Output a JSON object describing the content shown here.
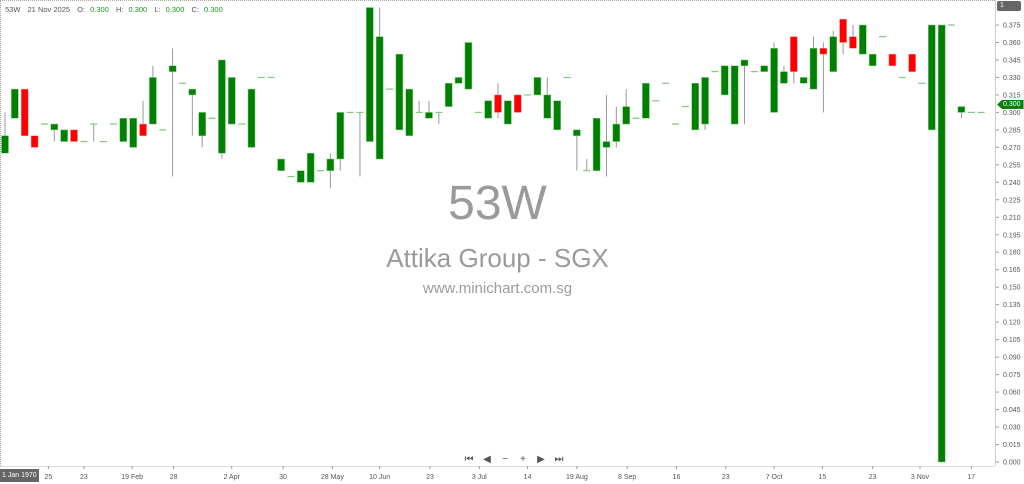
{
  "header": {
    "symbol": "53W",
    "date": "21 Nov 2025",
    "o_label": "O:",
    "o": "0.300",
    "h_label": "H:",
    "h": "0.300",
    "l_label": "L:",
    "l": "0.300",
    "c_label": "C:",
    "c": "0.300"
  },
  "watermark": {
    "ticker": "53W",
    "name": "Attika Group - SGX",
    "url": "www.minichart.com.sg"
  },
  "badges": {
    "scale": "1",
    "last_price": "0.300",
    "crosshair_date": "1 Jan 1970"
  },
  "nav": {
    "first": "⏮",
    "prev": "◀",
    "zoom_out": "−",
    "zoom_in": "+",
    "next": "▶",
    "last": "⏭"
  },
  "colors": {
    "up": "#008000",
    "down": "#ff0000",
    "wick": "#999999",
    "flat": "#7fc97f"
  },
  "chart_data": {
    "type": "candlestick",
    "ylim": [
      0,
      0.39
    ],
    "y_ticks": [
      "0.000",
      "0.015",
      "0.030",
      "0.045",
      "0.060",
      "0.075",
      "0.090",
      "0.105",
      "0.120",
      "0.135",
      "0.150",
      "0.165",
      "0.180",
      "0.195",
      "0.210",
      "0.225",
      "0.240",
      "0.255",
      "0.270",
      "0.285",
      "0.300",
      "0.315",
      "0.330",
      "0.345",
      "0.360",
      "0.375"
    ],
    "x_tick_labels": [
      "25",
      "23",
      "19 Feb",
      "28",
      "2 Apr",
      "30",
      "28 May",
      "10 Jun",
      "23",
      "3 Jul",
      "14",
      "19 Aug",
      "8 Sep",
      "16",
      "23",
      "7 Oct",
      "15",
      "23",
      "3 Nov",
      "17"
    ],
    "ohlc": [
      [
        0.265,
        0.3,
        0.265,
        0.28
      ],
      [
        0.295,
        0.32,
        0.295,
        0.32
      ],
      [
        0.32,
        0.32,
        0.28,
        0.28
      ],
      [
        0.28,
        0.28,
        0.27,
        0.27
      ],
      [
        0.29,
        0.29,
        0.29,
        0.29
      ],
      [
        0.285,
        0.29,
        0.275,
        0.29
      ],
      [
        0.275,
        0.285,
        0.275,
        0.285
      ],
      [
        0.285,
        0.285,
        0.275,
        0.275
      ],
      [
        0.275,
        0.275,
        0.275,
        0.275
      ],
      [
        0.29,
        0.29,
        0.275,
        0.29
      ],
      [
        0.275,
        0.275,
        0.275,
        0.275
      ],
      [
        0.29,
        0.29,
        0.29,
        0.29
      ],
      [
        0.275,
        0.295,
        0.275,
        0.295
      ],
      [
        0.27,
        0.295,
        0.27,
        0.295
      ],
      [
        0.29,
        0.31,
        0.28,
        0.28
      ],
      [
        0.29,
        0.34,
        0.29,
        0.33
      ],
      [
        0.285,
        0.285,
        0.285,
        0.285
      ],
      [
        0.335,
        0.355,
        0.245,
        0.34
      ],
      [
        0.325,
        0.325,
        0.325,
        0.325
      ],
      [
        0.315,
        0.32,
        0.28,
        0.32
      ],
      [
        0.28,
        0.3,
        0.27,
        0.3
      ],
      [
        0.295,
        0.295,
        0.295,
        0.295
      ],
      [
        0.265,
        0.345,
        0.26,
        0.345
      ],
      [
        0.29,
        0.33,
        0.29,
        0.33
      ],
      [
        0.29,
        0.29,
        0.29,
        0.29
      ],
      [
        0.27,
        0.32,
        0.27,
        0.32
      ],
      [
        0.33,
        0.33,
        0.33,
        0.33
      ],
      [
        0.33,
        0.33,
        0.33,
        0.33
      ],
      [
        0.25,
        0.26,
        0.25,
        0.26
      ],
      [
        0.245,
        0.245,
        0.245,
        0.245
      ],
      [
        0.24,
        0.25,
        0.24,
        0.25
      ],
      [
        0.24,
        0.265,
        0.24,
        0.265
      ],
      [
        0.25,
        0.25,
        0.25,
        0.25
      ],
      [
        0.25,
        0.265,
        0.235,
        0.26
      ],
      [
        0.26,
        0.3,
        0.25,
        0.3
      ],
      [
        0.3,
        0.3,
        0.3,
        0.3
      ],
      [
        0.3,
        0.3,
        0.245,
        0.3
      ],
      [
        0.275,
        0.39,
        0.275,
        0.39
      ],
      [
        0.26,
        0.39,
        0.26,
        0.365
      ],
      [
        0.32,
        0.32,
        0.32,
        0.32
      ],
      [
        0.285,
        0.35,
        0.285,
        0.35
      ],
      [
        0.28,
        0.32,
        0.28,
        0.32
      ],
      [
        0.3,
        0.31,
        0.3,
        0.3
      ],
      [
        0.295,
        0.31,
        0.295,
        0.3
      ],
      [
        0.3,
        0.3,
        0.29,
        0.3
      ],
      [
        0.305,
        0.325,
        0.305,
        0.325
      ],
      [
        0.325,
        0.33,
        0.325,
        0.33
      ],
      [
        0.32,
        0.36,
        0.32,
        0.36
      ],
      [
        0.3,
        0.3,
        0.3,
        0.3
      ],
      [
        0.295,
        0.31,
        0.295,
        0.31
      ],
      [
        0.315,
        0.325,
        0.295,
        0.3
      ],
      [
        0.29,
        0.31,
        0.29,
        0.31
      ],
      [
        0.315,
        0.315,
        0.3,
        0.3
      ],
      [
        0.315,
        0.315,
        0.315,
        0.315
      ],
      [
        0.315,
        0.33,
        0.315,
        0.33
      ],
      [
        0.295,
        0.33,
        0.295,
        0.315
      ],
      [
        0.285,
        0.31,
        0.285,
        0.31
      ],
      [
        0.33,
        0.33,
        0.33,
        0.33
      ],
      [
        0.28,
        0.285,
        0.25,
        0.285
      ],
      [
        0.25,
        0.26,
        0.25,
        0.25
      ],
      [
        0.25,
        0.295,
        0.25,
        0.295
      ],
      [
        0.27,
        0.315,
        0.245,
        0.275
      ],
      [
        0.275,
        0.305,
        0.27,
        0.29
      ],
      [
        0.29,
        0.32,
        0.29,
        0.305
      ],
      [
        0.295,
        0.295,
        0.295,
        0.295
      ],
      [
        0.295,
        0.325,
        0.295,
        0.325
      ],
      [
        0.31,
        0.31,
        0.31,
        0.31
      ],
      [
        0.325,
        0.325,
        0.325,
        0.325
      ],
      [
        0.29,
        0.29,
        0.29,
        0.29
      ],
      [
        0.305,
        0.305,
        0.305,
        0.305
      ],
      [
        0.285,
        0.325,
        0.285,
        0.325
      ],
      [
        0.29,
        0.33,
        0.285,
        0.33
      ],
      [
        0.335,
        0.335,
        0.335,
        0.335
      ],
      [
        0.315,
        0.34,
        0.315,
        0.34
      ],
      [
        0.29,
        0.34,
        0.29,
        0.34
      ],
      [
        0.34,
        0.345,
        0.29,
        0.345
      ],
      [
        0.335,
        0.335,
        0.335,
        0.335
      ],
      [
        0.335,
        0.34,
        0.335,
        0.34
      ],
      [
        0.3,
        0.36,
        0.3,
        0.355
      ],
      [
        0.325,
        0.34,
        0.325,
        0.335
      ],
      [
        0.365,
        0.365,
        0.325,
        0.335
      ],
      [
        0.325,
        0.33,
        0.325,
        0.33
      ],
      [
        0.32,
        0.365,
        0.32,
        0.355
      ],
      [
        0.355,
        0.36,
        0.3,
        0.35
      ],
      [
        0.335,
        0.37,
        0.335,
        0.365
      ],
      [
        0.38,
        0.38,
        0.35,
        0.36
      ],
      [
        0.365,
        0.375,
        0.355,
        0.355
      ],
      [
        0.35,
        0.375,
        0.35,
        0.375
      ],
      [
        0.34,
        0.35,
        0.34,
        0.35
      ],
      [
        0.365,
        0.365,
        0.365,
        0.365
      ],
      [
        0.35,
        0.35,
        0.34,
        0.34
      ],
      [
        0.33,
        0.33,
        0.33,
        0.33
      ],
      [
        0.35,
        0.35,
        0.335,
        0.335
      ],
      [
        0.325,
        0.325,
        0.325,
        0.325
      ],
      [
        0.285,
        0.375,
        0.285,
        0.375
      ],
      [
        0.0,
        0.375,
        0.0,
        0.375
      ],
      [
        0.375,
        0.375,
        0.375,
        0.375
      ],
      [
        0.3,
        0.305,
        0.295,
        0.305
      ],
      [
        0.3,
        0.3,
        0.3,
        0.3
      ],
      [
        0.3,
        0.3,
        0.3,
        0.3
      ]
    ]
  }
}
